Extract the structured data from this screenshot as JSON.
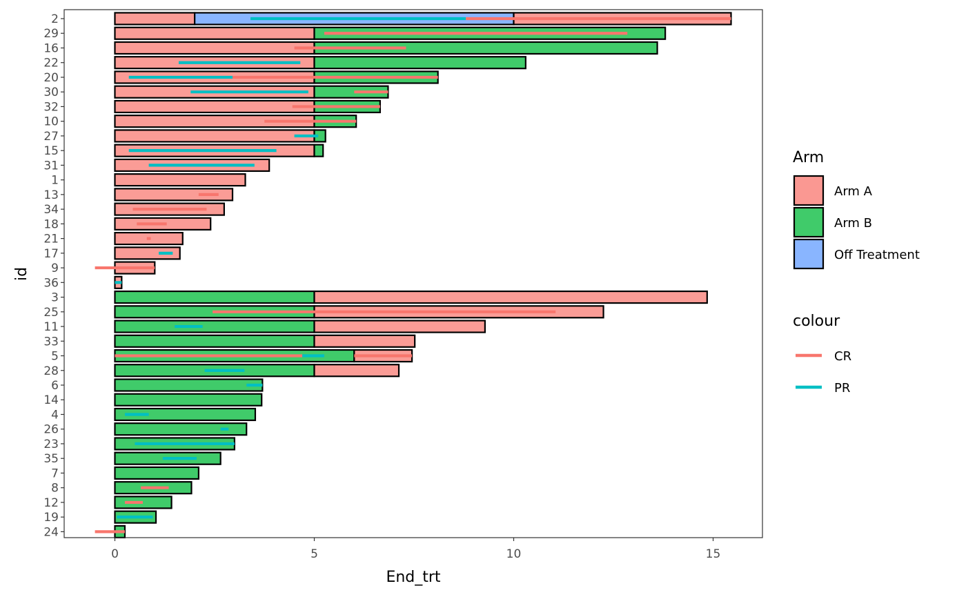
{
  "chart_data": {
    "type": "bar",
    "orientation": "horizontal-swimmer",
    "xlabel": "End_trt",
    "ylabel": "id",
    "xlim": [
      -1.25,
      16.25
    ],
    "x_ticks": [
      0,
      5,
      10,
      15
    ],
    "grid": false,
    "legend_position": "right",
    "categories": [
      "2",
      "29",
      "16",
      "22",
      "20",
      "30",
      "32",
      "10",
      "27",
      "15",
      "31",
      "1",
      "13",
      "34",
      "18",
      "21",
      "17",
      "9",
      "36",
      "3",
      "25",
      "11",
      "33",
      "5",
      "28",
      "6",
      "14",
      "4",
      "26",
      "23",
      "35",
      "7",
      "8",
      "12",
      "19",
      "24"
    ],
    "fill_legend": {
      "title": "Arm",
      "entries": [
        {
          "name": "Arm A",
          "color": "#F8766D"
        },
        {
          "name": "Arm B",
          "color": "#00BA38"
        },
        {
          "name": "Off Treatment",
          "color": "#619CFF"
        }
      ]
    },
    "colour_legend": {
      "title": "colour",
      "entries": [
        {
          "name": "CR",
          "color": "#F8766D"
        },
        {
          "name": "PR",
          "color": "#00BFC4"
        }
      ]
    },
    "bars": [
      {
        "id": "2",
        "segments": [
          {
            "arm": "Arm A",
            "start": 0,
            "end": 2
          },
          {
            "arm": "Off Treatment",
            "start": 2,
            "end": 10
          },
          {
            "arm": "Arm A",
            "start": 10,
            "end": 15.45
          }
        ]
      },
      {
        "id": "29",
        "segments": [
          {
            "arm": "Arm A",
            "start": 0,
            "end": 5
          },
          {
            "arm": "Arm B",
            "start": 5,
            "end": 13.8
          }
        ]
      },
      {
        "id": "16",
        "segments": [
          {
            "arm": "Arm A",
            "start": 0,
            "end": 5
          },
          {
            "arm": "Arm B",
            "start": 5,
            "end": 13.6
          }
        ]
      },
      {
        "id": "22",
        "segments": [
          {
            "arm": "Arm A",
            "start": 0,
            "end": 5
          },
          {
            "arm": "Arm B",
            "start": 5,
            "end": 10.3
          }
        ]
      },
      {
        "id": "20",
        "segments": [
          {
            "arm": "Arm A",
            "start": 0,
            "end": 5
          },
          {
            "arm": "Arm B",
            "start": 5,
            "end": 8.1
          }
        ]
      },
      {
        "id": "30",
        "segments": [
          {
            "arm": "Arm A",
            "start": 0,
            "end": 5
          },
          {
            "arm": "Arm B",
            "start": 5,
            "end": 6.85
          }
        ]
      },
      {
        "id": "32",
        "segments": [
          {
            "arm": "Arm A",
            "start": 0,
            "end": 5
          },
          {
            "arm": "Arm B",
            "start": 5,
            "end": 6.65
          }
        ]
      },
      {
        "id": "10",
        "segments": [
          {
            "arm": "Arm A",
            "start": 0,
            "end": 5
          },
          {
            "arm": "Arm B",
            "start": 5,
            "end": 6.05
          }
        ]
      },
      {
        "id": "27",
        "segments": [
          {
            "arm": "Arm A",
            "start": 0,
            "end": 5
          },
          {
            "arm": "Arm B",
            "start": 5,
            "end": 5.28
          }
        ]
      },
      {
        "id": "15",
        "segments": [
          {
            "arm": "Arm A",
            "start": 0,
            "end": 5
          },
          {
            "arm": "Arm B",
            "start": 5,
            "end": 5.22
          }
        ]
      },
      {
        "id": "31",
        "segments": [
          {
            "arm": "Arm A",
            "start": 0,
            "end": 3.87
          }
        ]
      },
      {
        "id": "1",
        "segments": [
          {
            "arm": "Arm A",
            "start": 0,
            "end": 3.27
          }
        ]
      },
      {
        "id": "13",
        "segments": [
          {
            "arm": "Arm A",
            "start": 0,
            "end": 2.95
          }
        ]
      },
      {
        "id": "34",
        "segments": [
          {
            "arm": "Arm A",
            "start": 0,
            "end": 2.74
          }
        ]
      },
      {
        "id": "18",
        "segments": [
          {
            "arm": "Arm A",
            "start": 0,
            "end": 2.4
          }
        ]
      },
      {
        "id": "21",
        "segments": [
          {
            "arm": "Arm A",
            "start": 0,
            "end": 1.7
          }
        ]
      },
      {
        "id": "17",
        "segments": [
          {
            "arm": "Arm A",
            "start": 0,
            "end": 1.63
          }
        ]
      },
      {
        "id": "9",
        "segments": [
          {
            "arm": "Arm A",
            "start": 0,
            "end": 1.0
          }
        ]
      },
      {
        "id": "36",
        "segments": [
          {
            "arm": "Arm A",
            "start": 0,
            "end": 0.17
          }
        ]
      },
      {
        "id": "3",
        "segments": [
          {
            "arm": "Arm B",
            "start": 0,
            "end": 5
          },
          {
            "arm": "Arm A",
            "start": 5,
            "end": 14.85
          }
        ]
      },
      {
        "id": "25",
        "segments": [
          {
            "arm": "Arm B",
            "start": 0,
            "end": 5
          },
          {
            "arm": "Arm A",
            "start": 5,
            "end": 12.25
          }
        ]
      },
      {
        "id": "11",
        "segments": [
          {
            "arm": "Arm B",
            "start": 0,
            "end": 5
          },
          {
            "arm": "Arm A",
            "start": 5,
            "end": 9.28
          }
        ]
      },
      {
        "id": "33",
        "segments": [
          {
            "arm": "Arm B",
            "start": 0,
            "end": 5
          },
          {
            "arm": "Arm A",
            "start": 5,
            "end": 7.52
          }
        ]
      },
      {
        "id": "5",
        "segments": [
          {
            "arm": "Arm B",
            "start": 0,
            "end": 6.0
          },
          {
            "arm": "Arm A",
            "start": 6.0,
            "end": 7.45
          }
        ]
      },
      {
        "id": "28",
        "segments": [
          {
            "arm": "Arm B",
            "start": 0,
            "end": 5
          },
          {
            "arm": "Arm A",
            "start": 5,
            "end": 7.12
          }
        ]
      },
      {
        "id": "6",
        "segments": [
          {
            "arm": "Arm B",
            "start": 0,
            "end": 3.7
          }
        ]
      },
      {
        "id": "14",
        "segments": [
          {
            "arm": "Arm B",
            "start": 0,
            "end": 3.68
          }
        ]
      },
      {
        "id": "4",
        "segments": [
          {
            "arm": "Arm B",
            "start": 0,
            "end": 3.52
          }
        ]
      },
      {
        "id": "26",
        "segments": [
          {
            "arm": "Arm B",
            "start": 0,
            "end": 3.3
          }
        ]
      },
      {
        "id": "23",
        "segments": [
          {
            "arm": "Arm B",
            "start": 0,
            "end": 3.0
          }
        ]
      },
      {
        "id": "35",
        "segments": [
          {
            "arm": "Arm B",
            "start": 0,
            "end": 2.65
          }
        ]
      },
      {
        "id": "7",
        "segments": [
          {
            "arm": "Arm B",
            "start": 0,
            "end": 2.1
          }
        ]
      },
      {
        "id": "8",
        "segments": [
          {
            "arm": "Arm B",
            "start": 0,
            "end": 1.92
          }
        ]
      },
      {
        "id": "12",
        "segments": [
          {
            "arm": "Arm B",
            "start": 0,
            "end": 1.42
          }
        ]
      },
      {
        "id": "19",
        "segments": [
          {
            "arm": "Arm B",
            "start": 0,
            "end": 1.03
          }
        ]
      },
      {
        "id": "24",
        "segments": [
          {
            "arm": "Arm B",
            "start": 0,
            "end": 0.25
          }
        ]
      }
    ],
    "responses": [
      {
        "id": "2",
        "type": "PR",
        "start": 3.4,
        "end": 8.8
      },
      {
        "id": "2",
        "type": "CR",
        "start": 8.8,
        "end": 15.45
      },
      {
        "id": "29",
        "type": "CR",
        "start": 5.25,
        "end": 12.85
      },
      {
        "id": "16",
        "type": "CR",
        "start": 4.5,
        "end": 7.3
      },
      {
        "id": "22",
        "type": "PR",
        "start": 1.6,
        "end": 4.65
      },
      {
        "id": "20",
        "type": "PR",
        "start": 0.35,
        "end": 2.95
      },
      {
        "id": "20",
        "type": "CR",
        "start": 2.95,
        "end": 8.1
      },
      {
        "id": "30",
        "type": "PR",
        "start": 1.9,
        "end": 4.85
      },
      {
        "id": "30",
        "type": "CR",
        "start": 6.0,
        "end": 6.85
      },
      {
        "id": "32",
        "type": "CR",
        "start": 4.45,
        "end": 6.65
      },
      {
        "id": "10",
        "type": "CR",
        "start": 3.75,
        "end": 6.05
      },
      {
        "id": "27",
        "type": "PR",
        "start": 4.5,
        "end": 5.1
      },
      {
        "id": "15",
        "type": "PR",
        "start": 0.35,
        "end": 4.05
      },
      {
        "id": "31",
        "type": "PR",
        "start": 0.85,
        "end": 3.5
      },
      {
        "id": "13",
        "type": "CR",
        "start": 2.1,
        "end": 2.6
      },
      {
        "id": "34",
        "type": "CR",
        "start": 0.45,
        "end": 2.3
      },
      {
        "id": "18",
        "type": "CR",
        "start": 0.55,
        "end": 1.3
      },
      {
        "id": "21",
        "type": "CR",
        "start": 0.8,
        "end": 0.9
      },
      {
        "id": "17",
        "type": "PR",
        "start": 1.1,
        "end": 1.45
      },
      {
        "id": "9",
        "type": "CR",
        "start": -0.5,
        "end": 1.0
      },
      {
        "id": "36",
        "type": "PR",
        "start": 0.0,
        "end": 0.17
      },
      {
        "id": "25",
        "type": "CR",
        "start": 2.45,
        "end": 11.05
      },
      {
        "id": "11",
        "type": "PR",
        "start": 1.5,
        "end": 2.2
      },
      {
        "id": "5",
        "type": "CR",
        "start": 0.0,
        "end": 4.7
      },
      {
        "id": "5",
        "type": "PR",
        "start": 4.7,
        "end": 5.25
      },
      {
        "id": "5",
        "type": "CR",
        "start": 6.0,
        "end": 7.45
      },
      {
        "id": "28",
        "type": "PR",
        "start": 2.25,
        "end": 3.25
      },
      {
        "id": "6",
        "type": "PR",
        "start": 3.3,
        "end": 3.7
      },
      {
        "id": "4",
        "type": "PR",
        "start": 0.25,
        "end": 0.85
      },
      {
        "id": "26",
        "type": "PR",
        "start": 2.65,
        "end": 2.85
      },
      {
        "id": "23",
        "type": "PR",
        "start": 0.5,
        "end": 3.0
      },
      {
        "id": "35",
        "type": "PR",
        "start": 1.2,
        "end": 2.05
      },
      {
        "id": "8",
        "type": "CR",
        "start": 0.65,
        "end": 1.35
      },
      {
        "id": "12",
        "type": "CR",
        "start": 0.25,
        "end": 0.7
      },
      {
        "id": "19",
        "type": "PR",
        "start": 0.05,
        "end": 0.95
      },
      {
        "id": "24",
        "type": "CR",
        "start": -0.5,
        "end": 0.25
      }
    ]
  }
}
